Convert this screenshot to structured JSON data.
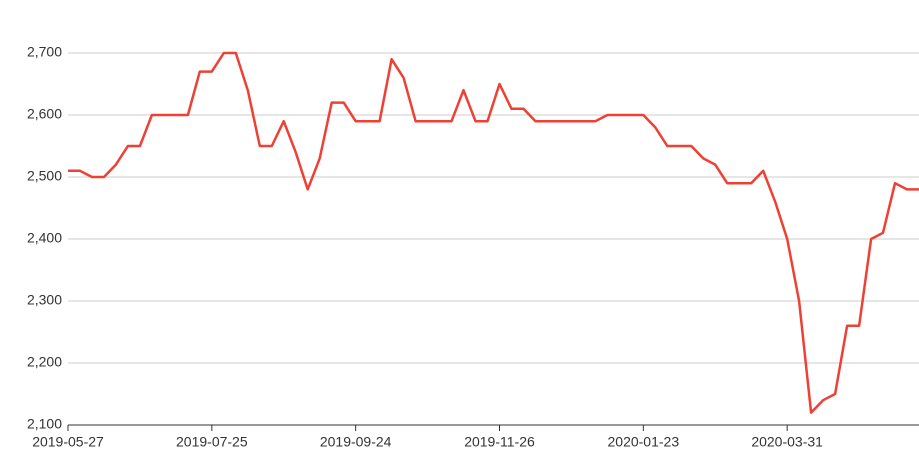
{
  "chart_data": {
    "type": "line",
    "categories": [
      "2019-05-27",
      null,
      null,
      null,
      null,
      null,
      null,
      null,
      null,
      null,
      null,
      null,
      "2019-07-25",
      null,
      null,
      null,
      null,
      null,
      null,
      null,
      null,
      null,
      null,
      null,
      "2019-09-24",
      null,
      null,
      null,
      null,
      null,
      null,
      null,
      null,
      null,
      null,
      null,
      "2019-11-26",
      null,
      null,
      null,
      null,
      null,
      null,
      null,
      null,
      null,
      null,
      null,
      "2020-01-23",
      null,
      null,
      null,
      null,
      null,
      null,
      null,
      null,
      null,
      null,
      null,
      "2020-03-31",
      null,
      null,
      null,
      null,
      null,
      null,
      null,
      null,
      null,
      null,
      null
    ],
    "values": [
      2510,
      2510,
      2500,
      2500,
      2520,
      2550,
      2550,
      2600,
      2600,
      2600,
      2600,
      2670,
      2670,
      2700,
      2700,
      2640,
      2550,
      2550,
      2590,
      2540,
      2480,
      2530,
      2620,
      2620,
      2590,
      2590,
      2590,
      2690,
      2660,
      2590,
      2590,
      2590,
      2590,
      2640,
      2590,
      2590,
      2650,
      2610,
      2610,
      2590,
      2590,
      2590,
      2590,
      2590,
      2590,
      2600,
      2600,
      2600,
      2600,
      2580,
      2550,
      2550,
      2550,
      2530,
      2520,
      2490,
      2490,
      2490,
      2510,
      2460,
      2400,
      2300,
      2120,
      2140,
      2150,
      2260,
      2260,
      2400,
      2410,
      2490,
      2480,
      2480
    ],
    "color": "#ee4035",
    "ylim": [
      2100,
      2780
    ],
    "yticks": [
      {
        "value": 2100,
        "label": "2,100"
      },
      {
        "value": 2200,
        "label": "2,200"
      },
      {
        "value": 2300,
        "label": "2,300"
      },
      {
        "value": 2400,
        "label": "2,400"
      },
      {
        "value": 2500,
        "label": "2,500"
      },
      {
        "value": 2600,
        "label": "2,600"
      },
      {
        "value": 2700,
        "label": "2,700"
      }
    ],
    "grid": true
  }
}
